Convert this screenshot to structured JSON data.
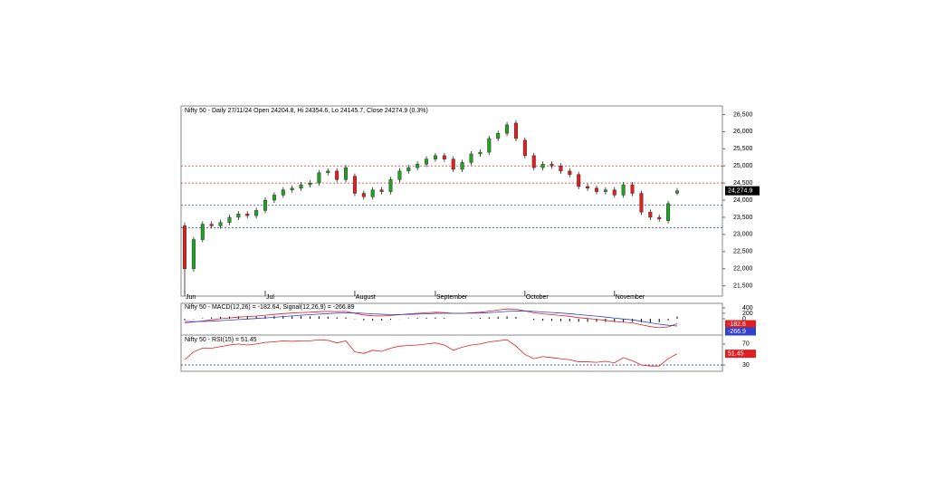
{
  "chart_data": [
    {
      "type": "candlestick",
      "title": "Nifty 50 - Daily 27/11/24 Open 24204.8, Hi 24354.6, Lo 24145.7, Close 24274.9 (0.3%)",
      "categories": [
        "Jun",
        null,
        null,
        null,
        null,
        null,
        null,
        null,
        null,
        "Jul",
        null,
        null,
        null,
        null,
        null,
        null,
        null,
        null,
        null,
        "August",
        null,
        null,
        null,
        null,
        null,
        null,
        null,
        null,
        "September",
        null,
        null,
        null,
        null,
        null,
        null,
        null,
        null,
        null,
        "October",
        null,
        null,
        null,
        null,
        null,
        null,
        null,
        null,
        null,
        "November",
        null,
        null,
        null,
        null,
        null,
        null,
        null
      ],
      "open": [
        23250,
        22000,
        22850,
        23300,
        23250,
        23350,
        23500,
        23600,
        23550,
        23700,
        24000,
        24150,
        24300,
        24350,
        24450,
        24500,
        24800,
        24850,
        24600,
        24700,
        24200,
        24100,
        24300,
        24250,
        24600,
        24850,
        24950,
        25050,
        25200,
        25300,
        25200,
        24900,
        25100,
        25350,
        25400,
        25800,
        25950,
        26250,
        25750,
        25300,
        24950,
        25050,
        25000,
        24850,
        24750,
        24400,
        24350,
        24250,
        24300,
        24150,
        24450,
        24200,
        23650,
        23500,
        23400,
        24204.8
      ],
      "high": [
        23350,
        22930,
        23380,
        23380,
        23430,
        23580,
        23680,
        23680,
        23780,
        24080,
        24230,
        24380,
        24430,
        24530,
        24580,
        24880,
        24930,
        24930,
        25030,
        24780,
        24280,
        24380,
        24380,
        24680,
        24930,
        25030,
        25130,
        25280,
        25380,
        25380,
        25280,
        25180,
        25430,
        25480,
        25880,
        26030,
        26280,
        26330,
        25830,
        25380,
        25130,
        25130,
        25080,
        24930,
        24830,
        24480,
        24430,
        24380,
        24380,
        24530,
        24530,
        24280,
        23730,
        23580,
        23980,
        24354.6
      ],
      "low": [
        21300,
        21920,
        22770,
        23170,
        23170,
        23270,
        23420,
        23470,
        23470,
        23620,
        23920,
        24070,
        24220,
        24270,
        24370,
        24420,
        24720,
        24520,
        24520,
        24120,
        24020,
        24020,
        24170,
        24170,
        24520,
        24770,
        24870,
        24970,
        25120,
        25120,
        24820,
        24820,
        25020,
        25270,
        25320,
        25720,
        25870,
        25720,
        25220,
        24870,
        24870,
        24920,
        24770,
        24670,
        24320,
        24270,
        24170,
        24170,
        24070,
        24070,
        24120,
        23570,
        23420,
        23370,
        23320,
        24145.7
      ],
      "close": [
        22000,
        22850,
        23300,
        23250,
        23350,
        23500,
        23600,
        23550,
        23700,
        24000,
        24150,
        24300,
        24350,
        24450,
        24500,
        24800,
        24850,
        24600,
        24950,
        24200,
        24100,
        24300,
        24250,
        24600,
        24850,
        24950,
        25050,
        25200,
        25300,
        25200,
        24900,
        25100,
        25350,
        25400,
        25800,
        25950,
        26200,
        25800,
        25300,
        24950,
        25050,
        25000,
        24850,
        24750,
        24400,
        24350,
        24250,
        24300,
        24150,
        24450,
        24200,
        23650,
        23500,
        23450,
        23900,
        24274.9
      ],
      "last_price_label": "24,274.9",
      "up_color": "#22a022",
      "down_color": "#e02020",
      "levels": [
        {
          "value": 25000,
          "color": "#e03030"
        },
        {
          "value": 24500,
          "color": "#e03030"
        },
        {
          "value": 23850,
          "color": "#3040c0"
        },
        {
          "value": 23200,
          "color": "#3040c0"
        }
      ],
      "ylim": [
        21200,
        26750
      ],
      "yticks": [
        {
          "value": 21500,
          "label": "21,500"
        },
        {
          "value": 22000,
          "label": "22,000"
        },
        {
          "value": 22500,
          "label": "22,500"
        },
        {
          "value": 23000,
          "label": "23,000"
        },
        {
          "value": 23500,
          "label": "23,500"
        },
        {
          "value": 24000,
          "label": "24,000"
        },
        {
          "value": 24500,
          "label": "24,500"
        },
        {
          "value": 25000,
          "label": "25,000"
        },
        {
          "value": 25500,
          "label": "25,500"
        },
        {
          "value": 26000,
          "label": "26,000"
        },
        {
          "value": 26500,
          "label": "26,500"
        }
      ]
    },
    {
      "type": "macd",
      "title": "Nifty 50 - MACD(12,26) = -182.64, Signal(12,26,9) = -266.89",
      "series": [
        {
          "name": "MACD",
          "color": "#e02020",
          "label": "-182.6",
          "values": [
            -150,
            -120,
            -80,
            -40,
            0,
            30,
            60,
            80,
            100,
            130,
            160,
            190,
            210,
            230,
            240,
            260,
            270,
            260,
            270,
            200,
            140,
            110,
            100,
            120,
            150,
            180,
            200,
            220,
            240,
            230,
            200,
            200,
            220,
            240,
            280,
            320,
            360,
            350,
            290,
            220,
            180,
            150,
            120,
            90,
            40,
            10,
            -20,
            -60,
            -100,
            -130,
            -150,
            -220,
            -290,
            -330,
            -300,
            -182.64
          ]
        },
        {
          "name": "Signal",
          "color": "#3040d0",
          "label": "-266.9",
          "values": [
            -100,
            -105,
            -100,
            -90,
            -70,
            -50,
            -30,
            -10,
            10,
            30,
            55,
            80,
            105,
            130,
            150,
            170,
            190,
            205,
            215,
            215,
            200,
            180,
            165,
            155,
            155,
            160,
            170,
            180,
            195,
            200,
            200,
            200,
            205,
            210,
            225,
            245,
            270,
            285,
            285,
            270,
            250,
            230,
            210,
            185,
            155,
            125,
            95,
            60,
            25,
            -10,
            -40,
            -90,
            -150,
            -200,
            -240,
            -266.89
          ]
        }
      ],
      "histogram": [
        -50,
        -15,
        20,
        50,
        70,
        80,
        90,
        90,
        90,
        100,
        105,
        110,
        105,
        100,
        90,
        90,
        80,
        55,
        55,
        -15,
        -60,
        -70,
        -65,
        -35,
        -5,
        20,
        30,
        40,
        45,
        30,
        0,
        0,
        15,
        30,
        55,
        75,
        90,
        65,
        5,
        -50,
        -70,
        -80,
        -90,
        -95,
        -115,
        -115,
        -115,
        -120,
        -125,
        -120,
        -110,
        -130,
        -140,
        -130,
        -60,
        84.25
      ],
      "ylim": [
        -600,
        567
      ],
      "yticks": [
        0,
        200,
        400
      ]
    },
    {
      "type": "rsi",
      "title": "Nifty 50 - RSI(15) = 51.45",
      "series": [
        {
          "name": "RSI",
          "color": "#e02020",
          "label": "51.45",
          "values": [
            40,
            55,
            62,
            62,
            65,
            68,
            70,
            68,
            70,
            73,
            74,
            76,
            75,
            76,
            76,
            78,
            77,
            72,
            76,
            55,
            52,
            58,
            56,
            62,
            66,
            67,
            68,
            70,
            72,
            68,
            58,
            64,
            68,
            70,
            74,
            76,
            78,
            66,
            50,
            42,
            46,
            44,
            42,
            40,
            36,
            36,
            35,
            37,
            34,
            44,
            38,
            30,
            28,
            28,
            42,
            51.45
          ]
        }
      ],
      "level": 30,
      "level_color": "#3040c0",
      "ylim": [
        18,
        87
      ],
      "yticks": [
        30,
        70
      ]
    }
  ]
}
